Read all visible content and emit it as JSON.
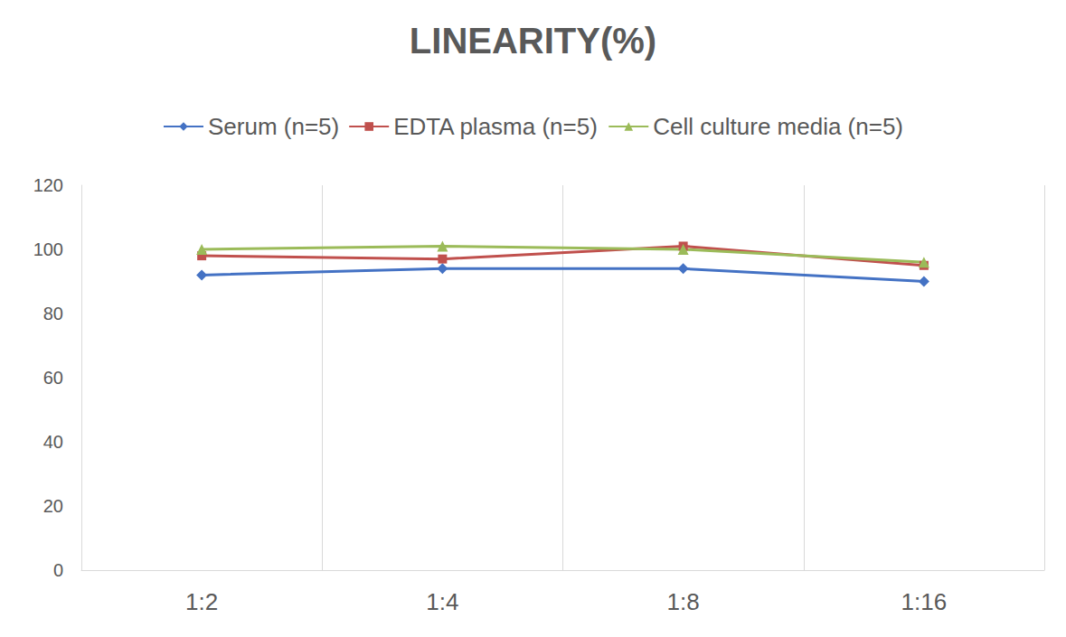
{
  "chart_data": {
    "type": "line",
    "title": "LINEARITY(%)",
    "categories": [
      "1:2",
      "1:4",
      "1:8",
      "1:16"
    ],
    "series": [
      {
        "name": "Serum (n=5)",
        "color": "#4472c4",
        "marker": "diamond",
        "values": [
          92,
          94,
          94,
          90
        ]
      },
      {
        "name": "EDTA plasma (n=5)",
        "color": "#c0504d",
        "marker": "square",
        "values": [
          98,
          97,
          101,
          95
        ]
      },
      {
        "name": "Cell culture media (n=5)",
        "color": "#9bbb59",
        "marker": "triangle",
        "values": [
          100,
          101,
          100,
          96
        ]
      }
    ],
    "ylim": [
      0,
      120
    ],
    "yticks": [
      0,
      20,
      40,
      60,
      80,
      100,
      120
    ],
    "grid": true,
    "legend": "top"
  }
}
